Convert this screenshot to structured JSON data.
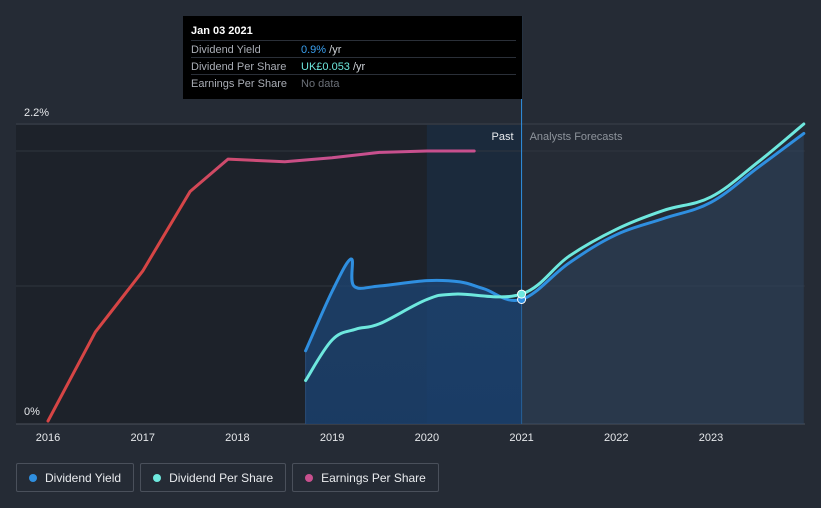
{
  "tooltip": {
    "date": "Jan 03 2021",
    "rows": [
      {
        "label": "Dividend Yield",
        "value": "0.9%",
        "unit": " /yr",
        "color": "#3aa0f0"
      },
      {
        "label": "Dividend Per Share",
        "value": "UK£0.053",
        "unit": " /yr",
        "color": "#6ee8de"
      },
      {
        "label": "Earnings Per Share",
        "value": "No data",
        "unit": "",
        "color": "#6b7078"
      }
    ]
  },
  "regions": {
    "past_label": "Past",
    "forecast_label": "Analysts Forecasts"
  },
  "legend": [
    {
      "label": "Dividend Yield",
      "color": "#2f8fe0"
    },
    {
      "label": "Dividend Per Share",
      "color": "#6ee8de"
    },
    {
      "label": "Earnings Per Share",
      "color": "#c8508e"
    }
  ],
  "chart_data": {
    "type": "line",
    "ylim": [
      0,
      2.2
    ],
    "y_tick_labels": [
      "0%",
      "2.2%"
    ],
    "x_tick_labels": [
      "2016",
      "2017",
      "2018",
      "2019",
      "2020",
      "2021",
      "2022",
      "2023"
    ],
    "divider": 2021.0,
    "series": [
      {
        "name": "Earnings Per Share",
        "color": "#d64545",
        "color_end": "#c8508e",
        "points": [
          [
            2016.0,
            0.0
          ],
          [
            2016.5,
            0.66
          ],
          [
            2017.0,
            1.11
          ],
          [
            2017.5,
            1.7
          ],
          [
            2017.9,
            1.94
          ],
          [
            2018.5,
            1.92
          ],
          [
            2019.0,
            1.95
          ],
          [
            2019.5,
            1.99
          ],
          [
            2020.0,
            2.0
          ],
          [
            2020.5,
            2.0
          ]
        ]
      },
      {
        "name": "Dividend Yield",
        "color": "#2f8fe0",
        "points": [
          [
            2018.72,
            0.52
          ],
          [
            2019.0,
            0.96
          ],
          [
            2019.2,
            1.2
          ],
          [
            2019.23,
            1.0
          ],
          [
            2019.5,
            1.0
          ],
          [
            2020.0,
            1.04
          ],
          [
            2020.35,
            1.03
          ],
          [
            2020.6,
            0.98
          ],
          [
            2021.0,
            0.9
          ],
          [
            2021.5,
            1.17
          ],
          [
            2022.0,
            1.38
          ],
          [
            2022.5,
            1.5
          ],
          [
            2023.0,
            1.62
          ],
          [
            2023.5,
            1.88
          ],
          [
            2023.98,
            2.13
          ]
        ]
      },
      {
        "name": "Dividend Per Share",
        "color": "#6ee8de",
        "points": [
          [
            2018.72,
            0.3
          ],
          [
            2019.0,
            0.6
          ],
          [
            2019.25,
            0.68
          ],
          [
            2019.5,
            0.72
          ],
          [
            2020.0,
            0.9
          ],
          [
            2020.3,
            0.94
          ],
          [
            2021.0,
            0.94
          ],
          [
            2021.5,
            1.22
          ],
          [
            2022.0,
            1.42
          ],
          [
            2022.5,
            1.56
          ],
          [
            2023.0,
            1.66
          ],
          [
            2023.5,
            1.92
          ],
          [
            2023.98,
            2.2
          ]
        ]
      }
    ]
  }
}
